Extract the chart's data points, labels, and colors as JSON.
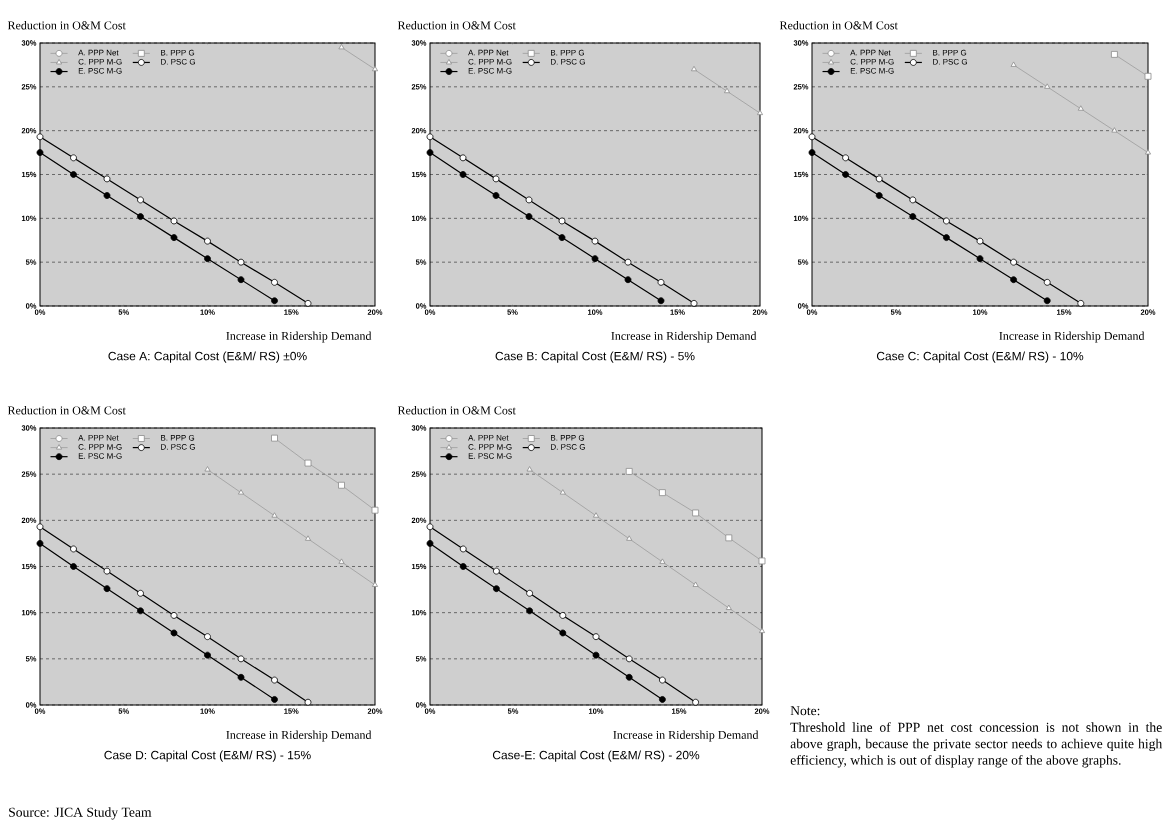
{
  "chart_data": [
    {
      "type": "line",
      "title": "Case A: Capital Cost (E&M/ RS) ±0%",
      "xlabel": "Increase in Ridership Demand",
      "ylabel": "Reduction in O&M Cost",
      "x": [
        0,
        2,
        4,
        6,
        8,
        10,
        12,
        14,
        16,
        18,
        20
      ],
      "xlim": [
        0,
        20
      ],
      "ylim": [
        0,
        30
      ],
      "xticks": [
        {
          "value": 0,
          "label": "0%"
        },
        {
          "value": 5,
          "label": "5%"
        },
        {
          "value": 10,
          "label": "10%"
        },
        {
          "value": 15,
          "label": "15%"
        },
        {
          "value": 20,
          "label": "20%"
        }
      ],
      "yticks": [
        {
          "value": 0,
          "label": "0%"
        },
        {
          "value": 5,
          "label": "5%"
        },
        {
          "value": 10,
          "label": "10%"
        },
        {
          "value": 15,
          "label": "15%"
        },
        {
          "value": 20,
          "label": "20%"
        },
        {
          "value": 25,
          "label": "25%"
        },
        {
          "value": 30,
          "label": "30%"
        }
      ],
      "grid": "y",
      "legend": "top left",
      "series": [
        {
          "name": "A. PPP Net",
          "color": "#8c8c8c",
          "marker": "circle",
          "values": [
            null,
            null,
            null,
            null,
            null,
            null,
            null,
            null,
            null,
            null,
            null
          ]
        },
        {
          "name": "B. PPP G",
          "color": "#8c8c8c",
          "marker": "square",
          "values": [
            null,
            null,
            null,
            null,
            null,
            null,
            null,
            null,
            null,
            null,
            null
          ]
        },
        {
          "name": "C. PPP M-G",
          "color": "#8c8c8c",
          "marker": "triangle",
          "values": [
            null,
            null,
            null,
            null,
            null,
            null,
            null,
            null,
            null,
            29.5,
            27
          ]
        },
        {
          "name": "D. PSC G",
          "color": "#000000",
          "marker": "circle",
          "values": [
            19.3,
            16.9,
            14.5,
            12.1,
            9.7,
            7.4,
            5.0,
            2.7,
            0.3,
            null,
            null
          ]
        },
        {
          "name": "E. PSC M-G",
          "color": "#000000",
          "marker": "circle",
          "values": [
            17.5,
            15.0,
            12.6,
            10.2,
            7.8,
            5.4,
            3.0,
            0.6,
            null,
            null,
            null
          ]
        }
      ]
    },
    {
      "type": "line",
      "title": "Case B: Capital Cost (E&M/ RS) - 5%",
      "xlabel": "Increase in Ridership Demand",
      "ylabel": "Reduction in O&M Cost",
      "x": [
        0,
        2,
        4,
        6,
        8,
        10,
        12,
        14,
        16,
        18,
        20
      ],
      "xlim": [
        0,
        20
      ],
      "ylim": [
        0,
        30
      ],
      "xticks": [
        {
          "value": 0,
          "label": "0%"
        },
        {
          "value": 5,
          "label": "5%"
        },
        {
          "value": 10,
          "label": "10%"
        },
        {
          "value": 15,
          "label": "15%"
        },
        {
          "value": 20,
          "label": "20%"
        }
      ],
      "yticks": [
        {
          "value": 0,
          "label": "0%"
        },
        {
          "value": 5,
          "label": "5%"
        },
        {
          "value": 10,
          "label": "10%"
        },
        {
          "value": 15,
          "label": "15%"
        },
        {
          "value": 20,
          "label": "20%"
        },
        {
          "value": 25,
          "label": "25%"
        },
        {
          "value": 30,
          "label": "30%"
        }
      ],
      "grid": "y",
      "legend": "top left",
      "series": [
        {
          "name": "A. PPP Net",
          "color": "#8c8c8c",
          "marker": "circle",
          "values": [
            null,
            null,
            null,
            null,
            null,
            null,
            null,
            null,
            null,
            null,
            null
          ]
        },
        {
          "name": "B. PPP G",
          "color": "#8c8c8c",
          "marker": "square",
          "values": [
            null,
            null,
            null,
            null,
            null,
            null,
            null,
            null,
            null,
            null,
            null
          ]
        },
        {
          "name": "C. PPP M-G",
          "color": "#8c8c8c",
          "marker": "triangle",
          "values": [
            null,
            null,
            null,
            null,
            null,
            null,
            null,
            null,
            27,
            24.5,
            22
          ]
        },
        {
          "name": "D. PSC G",
          "color": "#000000",
          "marker": "circle",
          "values": [
            19.3,
            16.9,
            14.5,
            12.1,
            9.7,
            7.4,
            5.0,
            2.7,
            0.3,
            null,
            null
          ]
        },
        {
          "name": "E. PSC M-G",
          "color": "#000000",
          "marker": "circle",
          "values": [
            17.5,
            15.0,
            12.6,
            10.2,
            7.8,
            5.4,
            3.0,
            0.6,
            null,
            null,
            null
          ]
        }
      ]
    },
    {
      "type": "line",
      "title": "Case C: Capital Cost (E&M/ RS) - 10%",
      "xlabel": "Increase in Ridership Demand",
      "ylabel": "Reduction in O&M Cost",
      "x": [
        0,
        2,
        4,
        6,
        8,
        10,
        12,
        14,
        16,
        18,
        20
      ],
      "xlim": [
        0,
        20
      ],
      "ylim": [
        0,
        30
      ],
      "xticks": [
        {
          "value": 0,
          "label": "0%"
        },
        {
          "value": 5,
          "label": "5%"
        },
        {
          "value": 10,
          "label": "10%"
        },
        {
          "value": 15,
          "label": "15%"
        },
        {
          "value": 20,
          "label": "20%"
        }
      ],
      "yticks": [
        {
          "value": 0,
          "label": "0%"
        },
        {
          "value": 5,
          "label": "5%"
        },
        {
          "value": 10,
          "label": "10%"
        },
        {
          "value": 15,
          "label": "15%"
        },
        {
          "value": 20,
          "label": "20%"
        },
        {
          "value": 25,
          "label": "25%"
        },
        {
          "value": 30,
          "label": "30%"
        }
      ],
      "grid": "y",
      "legend": "top left",
      "series": [
        {
          "name": "A. PPP Net",
          "color": "#8c8c8c",
          "marker": "circle",
          "values": [
            null,
            null,
            null,
            null,
            null,
            null,
            null,
            null,
            null,
            null,
            null
          ]
        },
        {
          "name": "B. PPP G",
          "color": "#8c8c8c",
          "marker": "square",
          "values": [
            null,
            null,
            null,
            null,
            null,
            null,
            null,
            null,
            null,
            28.7,
            26.2
          ]
        },
        {
          "name": "C. PPP M-G",
          "color": "#8c8c8c",
          "marker": "triangle",
          "values": [
            null,
            null,
            null,
            null,
            null,
            null,
            27.5,
            25,
            22.5,
            20,
            17.5
          ]
        },
        {
          "name": "D. PSC G",
          "color": "#000000",
          "marker": "circle",
          "values": [
            19.3,
            16.9,
            14.5,
            12.1,
            9.7,
            7.4,
            5.0,
            2.7,
            0.3,
            null,
            null
          ]
        },
        {
          "name": "E. PSC M-G",
          "color": "#000000",
          "marker": "circle",
          "values": [
            17.5,
            15.0,
            12.6,
            10.2,
            7.8,
            5.4,
            3.0,
            0.6,
            null,
            null,
            null
          ]
        }
      ]
    },
    {
      "type": "line",
      "title": "Case D: Capital Cost (E&M/ RS) - 15%",
      "xlabel": "Increase in Ridership Demand",
      "ylabel": "Reduction in O&M Cost",
      "x": [
        0,
        2,
        4,
        6,
        8,
        10,
        12,
        14,
        16,
        18,
        20
      ],
      "xlim": [
        0,
        20
      ],
      "ylim": [
        0,
        30
      ],
      "xticks": [
        {
          "value": 0,
          "label": "0%"
        },
        {
          "value": 5,
          "label": "5%"
        },
        {
          "value": 10,
          "label": "10%"
        },
        {
          "value": 15,
          "label": "15%"
        },
        {
          "value": 20,
          "label": "20%"
        }
      ],
      "yticks": [
        {
          "value": 0,
          "label": "0%"
        },
        {
          "value": 5,
          "label": "5%"
        },
        {
          "value": 10,
          "label": "10%"
        },
        {
          "value": 15,
          "label": "15%"
        },
        {
          "value": 20,
          "label": "20%"
        },
        {
          "value": 25,
          "label": "25%"
        },
        {
          "value": 30,
          "label": "30%"
        }
      ],
      "grid": "y",
      "legend": "top left",
      "annotations": [
        "Source: JICA Study Team"
      ],
      "series": [
        {
          "name": "A. PPP Net",
          "color": "#8c8c8c",
          "marker": "circle",
          "values": [
            null,
            null,
            null,
            null,
            null,
            null,
            null,
            null,
            null,
            null,
            null
          ]
        },
        {
          "name": "B. PPP G",
          "color": "#8c8c8c",
          "marker": "square",
          "values": [
            null,
            null,
            null,
            null,
            null,
            null,
            null,
            28.9,
            26.2,
            23.8,
            21.1
          ]
        },
        {
          "name": "C. PPP M-G",
          "color": "#8c8c8c",
          "marker": "triangle",
          "values": [
            null,
            null,
            null,
            null,
            null,
            25.5,
            23,
            20.5,
            18,
            15.5,
            13
          ]
        },
        {
          "name": "D. PSC G",
          "color": "#000000",
          "marker": "circle",
          "values": [
            19.3,
            16.9,
            14.5,
            12.1,
            9.7,
            7.4,
            5.0,
            2.7,
            0.3,
            null,
            null
          ]
        },
        {
          "name": "E. PSC M-G",
          "color": "#000000",
          "marker": "circle",
          "values": [
            17.5,
            15.0,
            12.6,
            10.2,
            7.8,
            5.4,
            3.0,
            0.6,
            null,
            null,
            null
          ]
        }
      ]
    },
    {
      "type": "line",
      "title": "Case-E: Capital Cost (E&M/ RS) - 20%",
      "xlabel": "Increase in Ridership Demand",
      "ylabel": "Reduction in O&M Cost",
      "x": [
        0,
        2,
        4,
        6,
        8,
        10,
        12,
        14,
        16,
        18,
        20
      ],
      "xlim": [
        0,
        20
      ],
      "ylim": [
        0,
        30
      ],
      "xticks": [
        {
          "value": 0,
          "label": "0%"
        },
        {
          "value": 5,
          "label": "5%"
        },
        {
          "value": 10,
          "label": "10%"
        },
        {
          "value": 15,
          "label": "15%"
        },
        {
          "value": 20,
          "label": "20%"
        }
      ],
      "yticks": [
        {
          "value": 0,
          "label": "0%"
        },
        {
          "value": 5,
          "label": "5%"
        },
        {
          "value": 10,
          "label": "10%"
        },
        {
          "value": 15,
          "label": "15%"
        },
        {
          "value": 20,
          "label": "20%"
        },
        {
          "value": 25,
          "label": "25%"
        },
        {
          "value": 30,
          "label": "30%"
        }
      ],
      "grid": "y",
      "legend": "top left",
      "annotations": [
        "Note:",
        "Threshold line of PPP net cost concession is not shown in the above graph, because the private sector needs to achieve quite high efficiency, which is out of display range of the above graphs."
      ],
      "series": [
        {
          "name": "A. PPP Net",
          "color": "#8c8c8c",
          "marker": "circle",
          "values": [
            null,
            null,
            null,
            null,
            null,
            null,
            null,
            null,
            null,
            null,
            null
          ]
        },
        {
          "name": "B. PPP G",
          "color": "#8c8c8c",
          "marker": "square",
          "values": [
            null,
            null,
            null,
            null,
            null,
            null,
            25.3,
            23,
            20.8,
            18.1,
            15.6
          ]
        },
        {
          "name": "C. PPP M-G",
          "color": "#8c8c8c",
          "marker": "triangle",
          "values": [
            null,
            null,
            null,
            25.5,
            23,
            20.5,
            18,
            15.5,
            13,
            10.5,
            8
          ]
        },
        {
          "name": "D. PSC G",
          "color": "#000000",
          "marker": "circle",
          "values": [
            19.3,
            16.9,
            14.5,
            12.1,
            9.7,
            7.4,
            5.0,
            2.7,
            0.3,
            null,
            null
          ]
        },
        {
          "name": "E. PSC M-G",
          "color": "#000000",
          "marker": "circle",
          "values": [
            17.5,
            15.0,
            12.6,
            10.2,
            7.8,
            5.4,
            3.0,
            0.6,
            null,
            null,
            null
          ]
        }
      ]
    }
  ]
}
